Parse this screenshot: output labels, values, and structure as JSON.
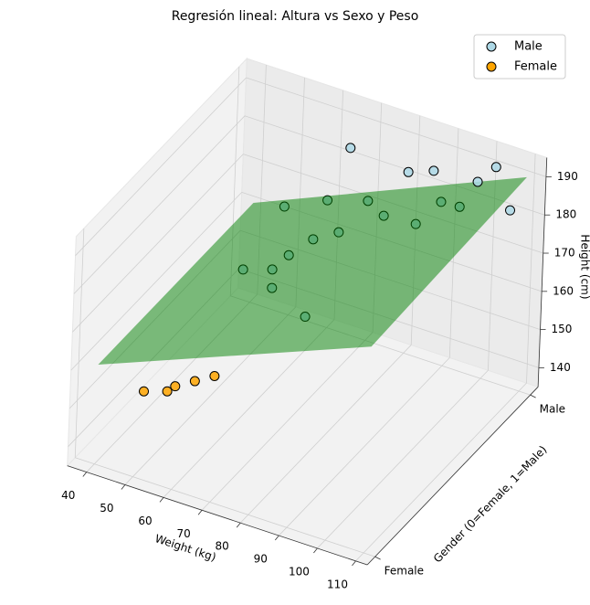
{
  "chart_data": {
    "type": "scatter3d",
    "title": "Regresión lineal: Altura vs Sexo y Peso",
    "x_label": "Weight (kg)",
    "y_label": "Gender (0=Female, 1=Male)",
    "z_label": "Height (cm)",
    "xlim": [
      35,
      113
    ],
    "ylim": [
      -0.05,
      1.05
    ],
    "zlim": [
      135,
      195
    ],
    "xticks": [
      40,
      50,
      60,
      70,
      80,
      90,
      100,
      110
    ],
    "yticks": [
      {
        "value": 0,
        "label": "Female"
      },
      {
        "value": 1,
        "label": "Male"
      }
    ],
    "zticks": [
      140,
      150,
      160,
      170,
      180,
      190
    ],
    "grid": true,
    "legend": "upper right",
    "series": [
      {
        "name": "Male",
        "color": "#add8e6",
        "x": [
          64.4,
          106,
          102,
          97.4,
          86,
          79.5,
          38,
          45.5,
          45.6,
          54.4,
          49.6,
          55.7,
          62.2,
          48,
          59,
          73.6,
          81.9,
          88.2,
          93,
          69.4
        ],
        "y": [
          1,
          1,
          1,
          1,
          1,
          1,
          1,
          1,
          1,
          1,
          1,
          1,
          1,
          1,
          1,
          1,
          1,
          1,
          1,
          1
        ],
        "z": [
          183.5,
          181,
          191,
          185.6,
          184.7,
          182.2,
          142.9,
          145.4,
          140.6,
          136,
          150.5,
          156.7,
          160.7,
          162.7,
          168,
          168.8,
          169.4,
          177.3,
          177.6,
          171.3
        ]
      },
      {
        "name": "Female",
        "color": "#ffa500",
        "x": [
          52,
          60,
          65,
          58,
          70
        ],
        "y": [
          0,
          0,
          0,
          0,
          0
        ],
        "z": [
          158,
          162,
          165,
          160,
          168
        ]
      }
    ],
    "plane": {
      "color": "green",
      "alpha": 0.5,
      "weight": [
        40,
        110
      ],
      "gender": [
        0,
        1
      ],
      "height": [
        [
          161,
          161
        ],
        [
          189,
          191
        ]
      ]
    }
  }
}
